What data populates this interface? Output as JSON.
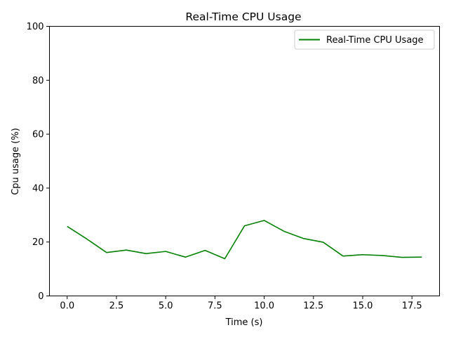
{
  "chart_data": {
    "type": "line",
    "title": "Real-Time CPU Usage",
    "xlabel": "Time (s)",
    "ylabel": "Cpu usage (%)",
    "xlim": [
      -0.9,
      18.9
    ],
    "ylim": [
      0,
      100
    ],
    "x_ticks": [
      0.0,
      2.5,
      5.0,
      7.5,
      10.0,
      12.5,
      15.0,
      17.5
    ],
    "x_tick_labels": [
      "0.0",
      "2.5",
      "5.0",
      "7.5",
      "10.0",
      "12.5",
      "15.0",
      "17.5"
    ],
    "y_ticks": [
      0,
      20,
      40,
      60,
      80,
      100
    ],
    "y_tick_labels": [
      "0",
      "20",
      "40",
      "60",
      "80",
      "100"
    ],
    "grid": false,
    "legend_position": "top-right",
    "series": [
      {
        "name": "Real-Time CPU Usage",
        "color": "#008000",
        "x": [
          0,
          1,
          2,
          3,
          4,
          5,
          6,
          7,
          8,
          9,
          10,
          11,
          12,
          13,
          14,
          15,
          16,
          17,
          18
        ],
        "values": [
          25.8,
          21.1,
          16.1,
          17.0,
          15.7,
          16.5,
          14.4,
          16.9,
          13.8,
          26.0,
          28.0,
          24.0,
          21.3,
          19.9,
          14.8,
          15.3,
          15.0,
          14.3,
          14.4
        ]
      }
    ]
  }
}
